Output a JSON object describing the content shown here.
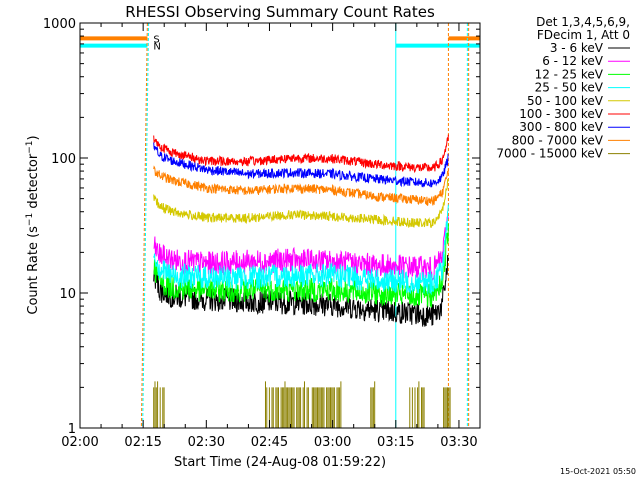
{
  "chart_data": {
    "type": "line",
    "title": "RHESSI Observing Summary Count Rates",
    "xlabel": "Start Time (24-Aug-08 01:59:22)",
    "ylabel_main": "Count Rate (s",
    "ylabel_sup1": "−1",
    "ylabel_mid": " detector",
    "ylabel_sup2": "−1",
    "ylabel_end": ")",
    "y_scale": "log",
    "ylim": [
      1,
      1000
    ],
    "xlim_minutes": [
      0,
      95
    ],
    "x_ticks": [
      {
        "label": "02:00",
        "t": 0
      },
      {
        "label": "02:15",
        "t": 15
      },
      {
        "label": "02:30",
        "t": 30
      },
      {
        "label": "02:45",
        "t": 45
      },
      {
        "label": "03:00",
        "t": 60
      },
      {
        "label": "03:15",
        "t": 75
      },
      {
        "label": "03:30",
        "t": 90
      }
    ],
    "y_ticks": [
      {
        "label": "1",
        "v": 1
      },
      {
        "label": "10",
        "v": 10
      },
      {
        "label": "100",
        "v": 100
      },
      {
        "label": "1000",
        "v": 1000
      }
    ],
    "legend_placement": "right",
    "legend_header": [
      "Det 1,3,4,5,6,9,",
      "FDecim 1, Att 0"
    ],
    "series": [
      {
        "name": "3 - 6 keV",
        "color": "#000000",
        "points": [
          [
            17.5,
            14
          ],
          [
            19,
            10.5
          ],
          [
            22,
            9.5
          ],
          [
            30,
            9
          ],
          [
            40,
            8.7
          ],
          [
            50,
            8.5
          ],
          [
            60,
            8.2
          ],
          [
            70,
            7.5
          ],
          [
            80,
            7
          ],
          [
            84,
            6.8
          ],
          [
            86,
            8
          ],
          [
            87.5,
            18
          ]
        ]
      },
      {
        "name": "6 - 12 keV",
        "color": "#ff00ff",
        "points": [
          [
            17.5,
            22
          ],
          [
            19,
            19
          ],
          [
            22,
            17.5
          ],
          [
            30,
            16.5
          ],
          [
            40,
            17
          ],
          [
            50,
            17.5
          ],
          [
            60,
            17
          ],
          [
            70,
            16
          ],
          [
            80,
            15.5
          ],
          [
            84,
            15
          ],
          [
            86,
            18
          ],
          [
            87.5,
            40
          ]
        ]
      },
      {
        "name": "12 - 25 keV",
        "color": "#00ff00",
        "points": [
          [
            17.5,
            16
          ],
          [
            19,
            12
          ],
          [
            22,
            11
          ],
          [
            30,
            10.5
          ],
          [
            40,
            10.5
          ],
          [
            50,
            10.5
          ],
          [
            60,
            10.5
          ],
          [
            70,
            10
          ],
          [
            80,
            9.5
          ],
          [
            84,
            9.5
          ],
          [
            86,
            12
          ],
          [
            87.5,
            30
          ]
        ]
      },
      {
        "name": "25 - 50 keV",
        "color": "#00ffff",
        "points": [
          [
            17.5,
            20
          ],
          [
            19,
            15
          ],
          [
            22,
            13.5
          ],
          [
            30,
            13
          ],
          [
            40,
            13
          ],
          [
            50,
            13.5
          ],
          [
            60,
            13.5
          ],
          [
            70,
            12.5
          ],
          [
            80,
            12
          ],
          [
            84,
            12
          ],
          [
            86,
            15
          ],
          [
            87.5,
            38
          ]
        ]
      },
      {
        "name": "50 - 100 keV",
        "color": "#d4c800",
        "points": [
          [
            17.5,
            50
          ],
          [
            19,
            44
          ],
          [
            22,
            40
          ],
          [
            30,
            36
          ],
          [
            40,
            36
          ],
          [
            50,
            38
          ],
          [
            60,
            37
          ],
          [
            70,
            35
          ],
          [
            80,
            33
          ],
          [
            84,
            33
          ],
          [
            86,
            40
          ],
          [
            87.5,
            70
          ]
        ]
      },
      {
        "name": "100 - 300 keV",
        "color": "#ff0000",
        "points": [
          [
            17.5,
            140
          ],
          [
            19,
            122
          ],
          [
            22,
            110
          ],
          [
            30,
            95
          ],
          [
            40,
            94
          ],
          [
            50,
            100
          ],
          [
            60,
            99
          ],
          [
            70,
            90
          ],
          [
            80,
            85
          ],
          [
            84,
            84
          ],
          [
            86,
            95
          ],
          [
            87.5,
            140
          ]
        ]
      },
      {
        "name": "300 - 800 keV",
        "color": "#0000ff",
        "points": [
          [
            17.5,
            122
          ],
          [
            19,
            104
          ],
          [
            22,
            95
          ],
          [
            30,
            82
          ],
          [
            40,
            76
          ],
          [
            50,
            78
          ],
          [
            60,
            76
          ],
          [
            70,
            70
          ],
          [
            80,
            66
          ],
          [
            84,
            65
          ],
          [
            86,
            72
          ],
          [
            87.5,
            100
          ]
        ]
      },
      {
        "name": "800 - 7000 keV",
        "color": "#ff8000",
        "points": [
          [
            17.5,
            82
          ],
          [
            19,
            74
          ],
          [
            22,
            68
          ],
          [
            30,
            60
          ],
          [
            40,
            57
          ],
          [
            50,
            60
          ],
          [
            60,
            58
          ],
          [
            70,
            52
          ],
          [
            80,
            49
          ],
          [
            84,
            48
          ],
          [
            86,
            55
          ],
          [
            87.5,
            80
          ]
        ]
      },
      {
        "name": "7000 - 15000 keV",
        "color": "#8b8000",
        "points": []
      }
    ],
    "status_bars": [
      {
        "label": "S",
        "color": "#ff8000",
        "value": 770,
        "segments": [
          [
            0,
            16
          ],
          [
            87.5,
            95
          ]
        ]
      },
      {
        "label": "N",
        "color": "#00ffff",
        "value": 680,
        "segments": [
          [
            0,
            16
          ],
          [
            75,
            95
          ]
        ]
      }
    ],
    "background_bursts": {
      "color": "#8b8000",
      "value": 2
    },
    "footer_stamp": "15-Oct-2021 05:50"
  }
}
